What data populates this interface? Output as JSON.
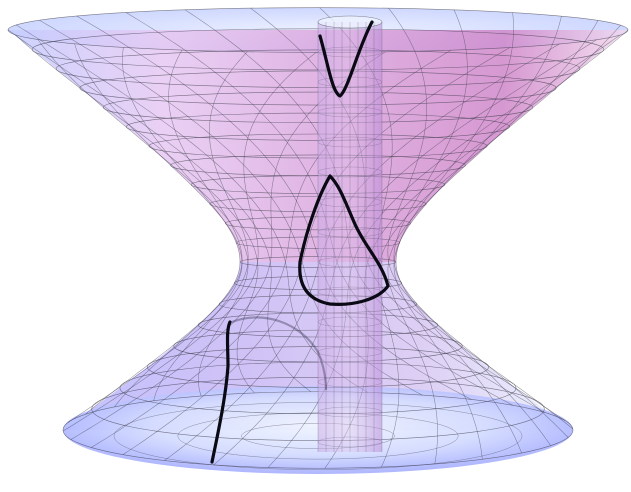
{
  "figure": {
    "description_kind": "3d-surface-render",
    "surfaces": [
      {
        "kind": "one-sheet-hyperboloid",
        "role": "main-surface"
      },
      {
        "kind": "circular-cylinder",
        "role": "intersecting-surface"
      }
    ],
    "curves": [
      {
        "role": "intersection-curve-upper"
      },
      {
        "role": "intersection-curve-middle"
      },
      {
        "role": "intersection-curve-lower"
      }
    ],
    "colors": {
      "surface_pink": "#d48fd0",
      "surface_blue": "#b9c3ff",
      "rim_light": "#eaf0ff",
      "mesh": "#3a3a48",
      "curve": "#0a0a14"
    }
  }
}
